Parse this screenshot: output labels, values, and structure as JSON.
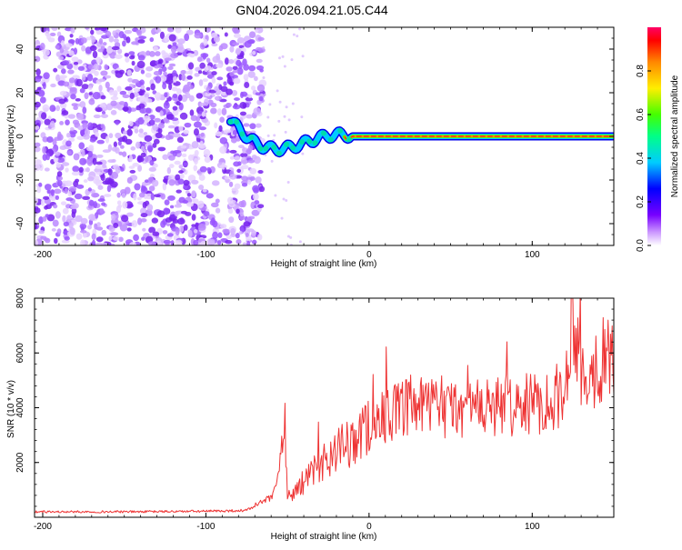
{
  "title": "GN04.2026.094.21.05.C44",
  "chart_data": [
    {
      "type": "heatmap",
      "xlabel": "Height of straight line (km)",
      "ylabel": "Frequency (Hz)",
      "xlim": [
        -205,
        150
      ],
      "ylim": [
        -50,
        50
      ],
      "x_ticks": [
        -200,
        -100,
        0,
        100
      ],
      "x_tick_labels": [
        "-200",
        "-100",
        "0",
        "100"
      ],
      "y_ticks": [
        -40,
        -20,
        0,
        20,
        40
      ],
      "y_tick_labels": [
        "-40",
        "-20",
        "0",
        "20",
        "40"
      ],
      "grid": false,
      "noise_region_x": [
        -205,
        -65
      ],
      "tone_start_km": -85,
      "tone_frequency_hz": 0,
      "colorbar": {
        "label": "Normalized spectral amplitude",
        "range": [
          0,
          1
        ],
        "ticks": [
          0.0,
          0.2,
          0.4,
          0.6,
          0.8
        ],
        "tick_labels": [
          "0.0",
          "0.2",
          "0.4",
          "0.6",
          "0.8"
        ],
        "colors": [
          "#ffffff",
          "#cc99ff",
          "#7700ff",
          "#0000ff",
          "#00ccff",
          "#00ff88",
          "#44ff00",
          "#ffee00",
          "#ff8800",
          "#ff0000",
          "#ff0066"
        ]
      }
    },
    {
      "type": "line",
      "xlabel": "Height of straight line (km)",
      "ylabel": "SNR (10 * v/v)",
      "xlim": [
        -205,
        150
      ],
      "ylim": [
        0,
        8000
      ],
      "x_ticks": [
        -200,
        -100,
        0,
        100
      ],
      "x_tick_labels": [
        "-200",
        "-100",
        "0",
        "100"
      ],
      "y_ticks": [
        2000,
        4000,
        6000,
        8000
      ],
      "y_tick_labels": [
        "2000",
        "4000",
        "6000",
        "8000"
      ],
      "grid": false,
      "line_color": "#ee3333",
      "x": [
        -205,
        -150,
        -100,
        -75,
        -68,
        -60,
        -55,
        -52,
        -50,
        -45,
        -40,
        -35,
        -30,
        -20,
        -10,
        0,
        10,
        20,
        30,
        40,
        50,
        60,
        70,
        80,
        90,
        100,
        110,
        120,
        125,
        130,
        140,
        150
      ],
      "y": [
        200,
        200,
        220,
        250,
        500,
        700,
        1500,
        3900,
        700,
        1000,
        1300,
        1600,
        2000,
        2400,
        2800,
        3300,
        3700,
        3900,
        4000,
        4000,
        3950,
        4000,
        4000,
        4050,
        4100,
        4100,
        4300,
        4500,
        8000,
        5000,
        5600,
        6000
      ]
    }
  ]
}
